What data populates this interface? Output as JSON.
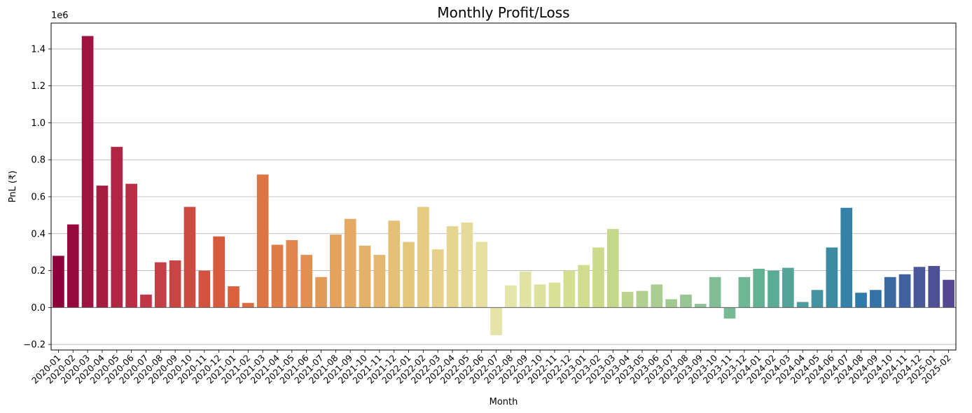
{
  "chart_data": {
    "type": "bar",
    "title": "Monthly Profit/Loss",
    "xlabel": "Month",
    "ylabel": "PnL (₹)",
    "y_offset_label": "1e6",
    "ylim": [
      -0.23,
      1.54
    ],
    "yticks": [
      -0.2,
      0.0,
      0.2,
      0.4,
      0.6,
      0.8,
      1.0,
      1.2,
      1.4
    ],
    "ytick_labels": [
      "−0.2",
      "0.0",
      "0.2",
      "0.4",
      "0.6",
      "0.8",
      "1.0",
      "1.2",
      "1.4"
    ],
    "grid": "y",
    "legend": "none",
    "palette": "Spectral",
    "categories": [
      "2020-01",
      "2020-02",
      "2020-03",
      "2020-04",
      "2020-05",
      "2020-06",
      "2020-07",
      "2020-08",
      "2020-09",
      "2020-10",
      "2020-11",
      "2020-12",
      "2021-01",
      "2021-02",
      "2021-03",
      "2021-04",
      "2021-05",
      "2021-06",
      "2021-07",
      "2021-08",
      "2021-09",
      "2021-10",
      "2021-11",
      "2021-12",
      "2022-01",
      "2022-02",
      "2022-03",
      "2022-04",
      "2022-05",
      "2022-06",
      "2022-07",
      "2022-08",
      "2022-09",
      "2022-10",
      "2022-11",
      "2022-12",
      "2023-01",
      "2023-02",
      "2023-03",
      "2023-04",
      "2023-05",
      "2023-06",
      "2023-07",
      "2023-08",
      "2023-09",
      "2023-10",
      "2023-11",
      "2023-12",
      "2024-01",
      "2024-02",
      "2024-03",
      "2024-04",
      "2024-05",
      "2024-06",
      "2024-07",
      "2024-08",
      "2024-09",
      "2024-10",
      "2024-11",
      "2024-12",
      "2025-01",
      "2025-02"
    ],
    "values": [
      280000,
      450000,
      1470000,
      660000,
      870000,
      670000,
      70000,
      245000,
      255000,
      545000,
      200000,
      385000,
      115000,
      25000,
      720000,
      340000,
      365000,
      285000,
      165000,
      395000,
      480000,
      335000,
      285000,
      470000,
      355000,
      545000,
      315000,
      440000,
      460000,
      355000,
      -150000,
      120000,
      195000,
      125000,
      135000,
      200000,
      230000,
      325000,
      425000,
      85000,
      90000,
      125000,
      45000,
      70000,
      20000,
      165000,
      -60000,
      165000,
      210000,
      200000,
      215000,
      30000,
      95000,
      325000,
      540000,
      80000,
      95000,
      165000,
      180000,
      220000,
      225000,
      150000
    ]
  }
}
